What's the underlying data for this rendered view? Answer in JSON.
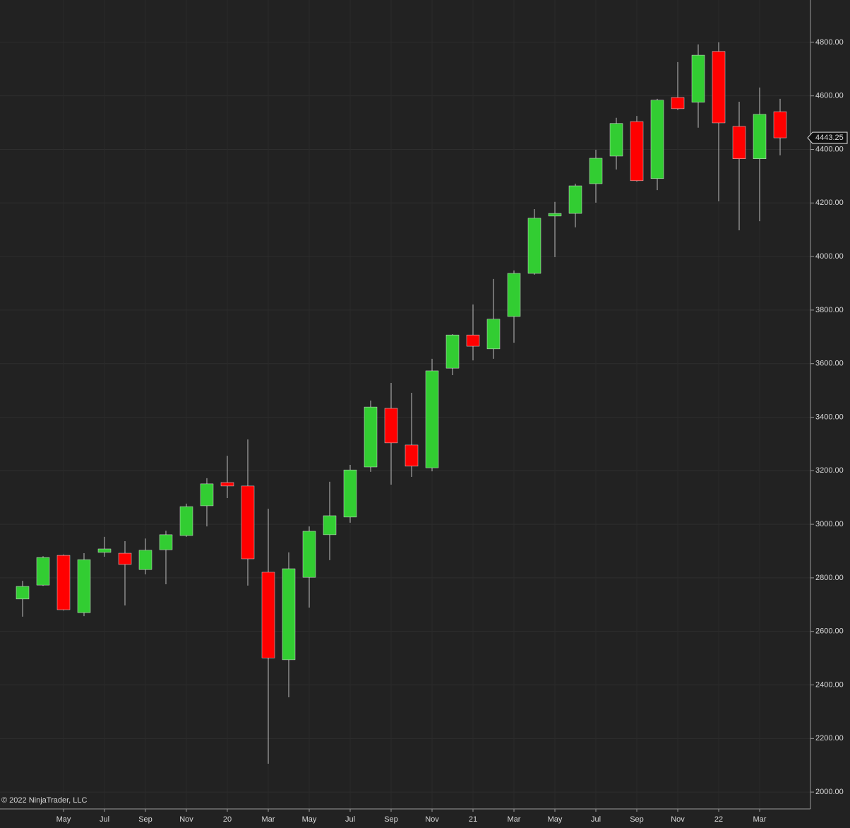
{
  "chart_data": {
    "type": "candlestick",
    "categories": [
      null,
      null,
      "May",
      null,
      "Jul",
      null,
      "Sep",
      null,
      "Nov",
      null,
      "20",
      null,
      "Mar",
      null,
      "May",
      null,
      "Jul",
      null,
      "Sep",
      null,
      "Nov",
      null,
      "21",
      null,
      "Mar",
      null,
      "May",
      null,
      "Jul",
      null,
      "Sep",
      null,
      "Nov",
      null,
      "22",
      null,
      "Mar",
      null
    ],
    "open": [
      2721,
      2773,
      2884,
      2670,
      2895,
      2892,
      2831,
      2905,
      2958,
      3069,
      3156,
      3143,
      2821,
      2494,
      2802,
      2961,
      3027,
      3214,
      3433,
      3296,
      3211,
      3583,
      3707,
      3655,
      3776,
      3937,
      4151,
      4161,
      4272,
      4375,
      4504,
      4291,
      4594,
      4576,
      4766,
      4486,
      4365,
      4541
    ],
    "high": [
      2789,
      2881,
      2887,
      2892,
      2953,
      2937,
      2947,
      2976,
      3077,
      3172,
      3256,
      3317,
      3058,
      2895,
      2992,
      3159,
      3222,
      3462,
      3528,
      3491,
      3618,
      3710,
      3821,
      3916,
      3948,
      4177,
      4204,
      4272,
      4399,
      4518,
      4525,
      4589,
      4726,
      4792,
      4800,
      4578,
      4631,
      4589
    ],
    "low": [
      2655,
      2770,
      2678,
      2657,
      2879,
      2697,
      2813,
      2776,
      2953,
      2992,
      3098,
      2771,
      2106,
      2354,
      2689,
      2866,
      3006,
      3196,
      3148,
      3177,
      3198,
      3557,
      3612,
      3618,
      3678,
      3932,
      3998,
      4109,
      4201,
      4325,
      4280,
      4248,
      4547,
      4481,
      4206,
      4098,
      4132,
      4378
    ],
    "close": [
      2768,
      2876,
      2681,
      2868,
      2908,
      2850,
      2903,
      2961,
      3066,
      3151,
      3143,
      2871,
      2501,
      2834,
      2974,
      3032,
      3203,
      3438,
      3304,
      3217,
      3573,
      3707,
      3665,
      3766,
      3937,
      4143,
      4161,
      4264,
      4367,
      4497,
      4283,
      4584,
      4552,
      4752,
      4499,
      4365,
      4531,
      4443.25
    ],
    "up_color": "#32cd32",
    "down_color": "#ff0000",
    "ylim": [
      1937,
      4958
    ],
    "yticks": [
      {
        "value": 2000,
        "label": "2000.00"
      },
      {
        "value": 2200,
        "label": "2200.00"
      },
      {
        "value": 2400,
        "label": "2400.00"
      },
      {
        "value": 2600,
        "label": "2600.00"
      },
      {
        "value": 2800,
        "label": "2800.00"
      },
      {
        "value": 3000,
        "label": "3000.00"
      },
      {
        "value": 3200,
        "label": "3200.00"
      },
      {
        "value": 3400,
        "label": "3400.00"
      },
      {
        "value": 3600,
        "label": "3600.00"
      },
      {
        "value": 3800,
        "label": "3800.00"
      },
      {
        "value": 4000,
        "label": "4000.00"
      },
      {
        "value": 4200,
        "label": "4200.00"
      },
      {
        "value": 4400,
        "label": "4400.00"
      },
      {
        "value": 4600,
        "label": "4600.00"
      },
      {
        "value": 4800,
        "label": "4800.00"
      }
    ],
    "grid": true,
    "copyright": "© 2022 NinjaTrader, LLC"
  }
}
